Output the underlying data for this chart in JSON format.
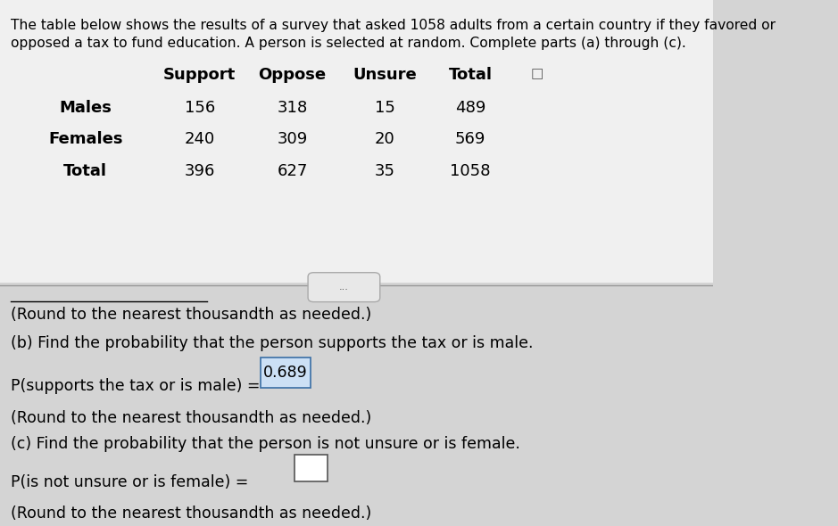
{
  "title_line1": "The table below shows the results of a survey that asked 1058 adults from a certain country if they favored or",
  "title_line2": "opposed a tax to fund education. A person is selected at random. Complete parts (a) through (c).",
  "table_headers": [
    "Support",
    "Oppose",
    "Unsure",
    "Total"
  ],
  "table_rows": [
    [
      "Males",
      "156",
      "318",
      "15",
      "489"
    ],
    [
      "Females",
      "240",
      "309",
      "20",
      "569"
    ],
    [
      "Total",
      "396",
      "627",
      "35",
      "1058"
    ]
  ],
  "round_note_top": "(Round to the nearest thousandth as needed.)",
  "part_b_label": "(b) Find the probability that the person supports the tax or is male.",
  "part_b_prob_text": "P(supports the tax or is male) =",
  "part_b_prob_value": "0.689",
  "round_note_b": "(Round to the nearest thousandth as needed.)",
  "part_c_label": "(c) Find the probability that the person is not unsure or is female.",
  "part_c_prob_text": "P(is not unsure or is female) =",
  "part_c_prob_value": "",
  "round_note_c": "(Round to the nearest thousandth as needed.)",
  "bg_color": "#d4d4d4",
  "table_bg_color": "#f0f0f0",
  "text_color": "#000000",
  "divider_color": "#999999",
  "font_size_title": 11.2,
  "font_size_table": 13,
  "font_size_body": 12.5
}
